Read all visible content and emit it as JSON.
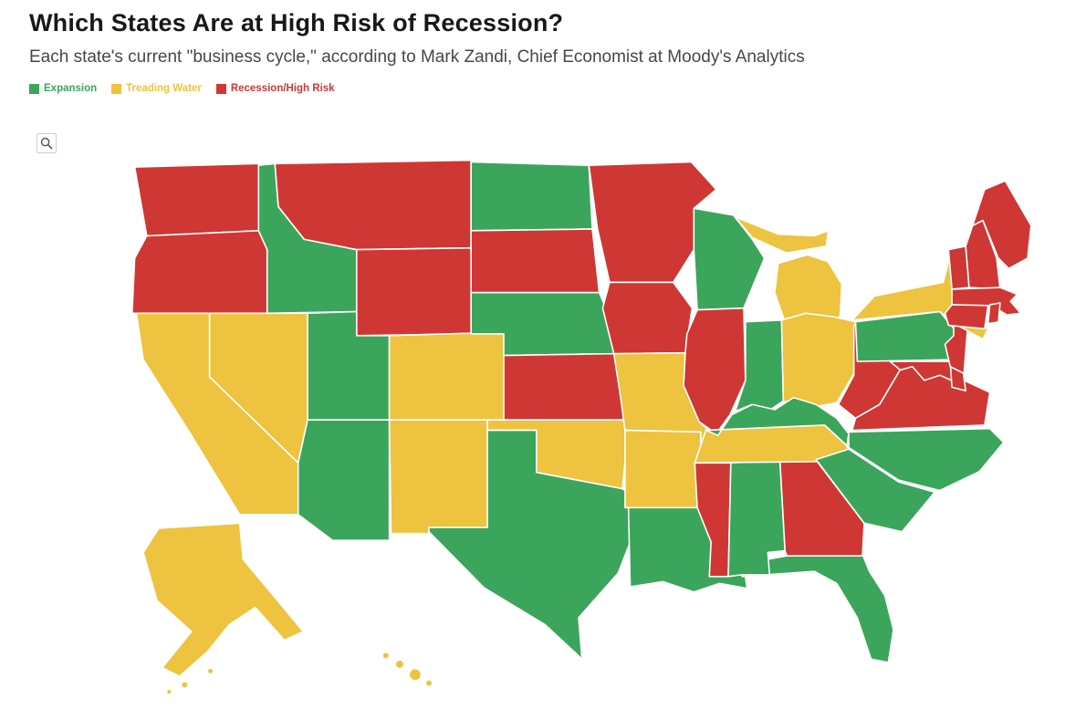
{
  "header": {
    "title": "Which States Are at High Risk of Recession?",
    "subtitle": "Each state's current \"business cycle,\" according to Mark Zandi, Chief Economist at Moody's Analytics"
  },
  "legend": {
    "items": [
      {
        "label": "Expansion",
        "status": "expansion",
        "color": "#3ba55b"
      },
      {
        "label": "Treading Water",
        "status": "treading_water",
        "color": "#edc33f"
      },
      {
        "label": "Recession/High Risk",
        "status": "recession_high_risk",
        "color": "#ce3733"
      }
    ]
  },
  "toolbar": {
    "zoom_button": {
      "icon": "magnifier-icon"
    }
  },
  "chart_data": {
    "type": "heatmap",
    "subtype": "choropleth-us-states",
    "title": "Which States Are at High Risk of Recession?",
    "legend_position": "top-left",
    "status_labels": {
      "expansion": "Expansion",
      "treading_water": "Treading Water",
      "recession_high_risk": "Recession/High Risk"
    },
    "status_colors": {
      "expansion": "#3ba55b",
      "treading_water": "#edc33f",
      "recession_high_risk": "#ce3733"
    },
    "states": [
      {
        "code": "AK",
        "name": "Alaska",
        "status": "treading_water"
      },
      {
        "code": "AL",
        "name": "Alabama",
        "status": "expansion"
      },
      {
        "code": "AR",
        "name": "Arkansas",
        "status": "treading_water"
      },
      {
        "code": "AZ",
        "name": "Arizona",
        "status": "expansion"
      },
      {
        "code": "CA",
        "name": "California",
        "status": "treading_water"
      },
      {
        "code": "CO",
        "name": "Colorado",
        "status": "treading_water"
      },
      {
        "code": "CT",
        "name": "Connecticut",
        "status": "recession_high_risk"
      },
      {
        "code": "DE",
        "name": "Delaware",
        "status": "recession_high_risk"
      },
      {
        "code": "FL",
        "name": "Florida",
        "status": "expansion"
      },
      {
        "code": "GA",
        "name": "Georgia",
        "status": "recession_high_risk"
      },
      {
        "code": "HI",
        "name": "Hawaii",
        "status": "treading_water"
      },
      {
        "code": "IA",
        "name": "Iowa",
        "status": "recession_high_risk"
      },
      {
        "code": "ID",
        "name": "Idaho",
        "status": "expansion"
      },
      {
        "code": "IL",
        "name": "Illinois",
        "status": "recession_high_risk"
      },
      {
        "code": "IN",
        "name": "Indiana",
        "status": "expansion"
      },
      {
        "code": "KS",
        "name": "Kansas",
        "status": "recession_high_risk"
      },
      {
        "code": "KY",
        "name": "Kentucky",
        "status": "expansion"
      },
      {
        "code": "LA",
        "name": "Louisiana",
        "status": "expansion"
      },
      {
        "code": "MA",
        "name": "Massachusetts",
        "status": "recession_high_risk"
      },
      {
        "code": "MD",
        "name": "Maryland",
        "status": "recession_high_risk"
      },
      {
        "code": "ME",
        "name": "Maine",
        "status": "recession_high_risk"
      },
      {
        "code": "MI",
        "name": "Michigan",
        "status": "treading_water"
      },
      {
        "code": "MN",
        "name": "Minnesota",
        "status": "recession_high_risk"
      },
      {
        "code": "MO",
        "name": "Missouri",
        "status": "treading_water"
      },
      {
        "code": "MS",
        "name": "Mississippi",
        "status": "recession_high_risk"
      },
      {
        "code": "MT",
        "name": "Montana",
        "status": "recession_high_risk"
      },
      {
        "code": "NC",
        "name": "North Carolina",
        "status": "expansion"
      },
      {
        "code": "ND",
        "name": "North Dakota",
        "status": "expansion"
      },
      {
        "code": "NE",
        "name": "Nebraska",
        "status": "expansion"
      },
      {
        "code": "NH",
        "name": "New Hampshire",
        "status": "recession_high_risk"
      },
      {
        "code": "NJ",
        "name": "New Jersey",
        "status": "recession_high_risk"
      },
      {
        "code": "NM",
        "name": "New Mexico",
        "status": "treading_water"
      },
      {
        "code": "NV",
        "name": "Nevada",
        "status": "treading_water"
      },
      {
        "code": "NY",
        "name": "New York",
        "status": "treading_water"
      },
      {
        "code": "OH",
        "name": "Ohio",
        "status": "treading_water"
      },
      {
        "code": "OK",
        "name": "Oklahoma",
        "status": "treading_water"
      },
      {
        "code": "OR",
        "name": "Oregon",
        "status": "recession_high_risk"
      },
      {
        "code": "PA",
        "name": "Pennsylvania",
        "status": "expansion"
      },
      {
        "code": "RI",
        "name": "Rhode Island",
        "status": "recession_high_risk"
      },
      {
        "code": "SC",
        "name": "South Carolina",
        "status": "expansion"
      },
      {
        "code": "SD",
        "name": "South Dakota",
        "status": "recession_high_risk"
      },
      {
        "code": "TN",
        "name": "Tennessee",
        "status": "treading_water"
      },
      {
        "code": "TX",
        "name": "Texas",
        "status": "expansion"
      },
      {
        "code": "UT",
        "name": "Utah",
        "status": "expansion"
      },
      {
        "code": "VA",
        "name": "Virginia",
        "status": "recession_high_risk"
      },
      {
        "code": "VT",
        "name": "Vermont",
        "status": "recession_high_risk"
      },
      {
        "code": "WA",
        "name": "Washington",
        "status": "recession_high_risk"
      },
      {
        "code": "WI",
        "name": "Wisconsin",
        "status": "expansion"
      },
      {
        "code": "WV",
        "name": "West Virginia",
        "status": "recession_high_risk"
      },
      {
        "code": "WY",
        "name": "Wyoming",
        "status": "recession_high_risk"
      }
    ]
  }
}
